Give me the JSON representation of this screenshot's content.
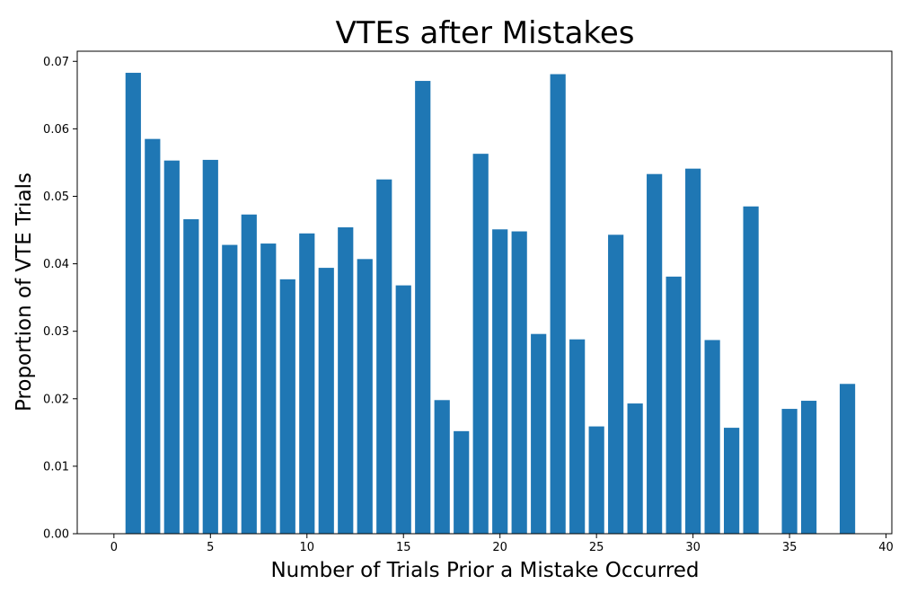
{
  "chart_data": {
    "type": "bar",
    "title": "VTEs after Mistakes",
    "xlabel": "Number of Trials Prior a Mistake Occurred",
    "ylabel": "Proportion of VTE Trials",
    "xlim": [
      -1.9,
      40.3
    ],
    "ylim": [
      0,
      0.0715
    ],
    "bar_width": 0.8,
    "bar_color": "#1f77b4",
    "grid": false,
    "x_ticks": [
      {
        "value": 0,
        "label": "0"
      },
      {
        "value": 5,
        "label": "5"
      },
      {
        "value": 10,
        "label": "10"
      },
      {
        "value": 15,
        "label": "15"
      },
      {
        "value": 20,
        "label": "20"
      },
      {
        "value": 25,
        "label": "25"
      },
      {
        "value": 30,
        "label": "30"
      },
      {
        "value": 35,
        "label": "35"
      },
      {
        "value": 40,
        "label": "40"
      }
    ],
    "y_ticks": [
      {
        "value": 0,
        "label": "0.00"
      },
      {
        "value": 0.01,
        "label": "0.01"
      },
      {
        "value": 0.02,
        "label": "0.02"
      },
      {
        "value": 0.03,
        "label": "0.03"
      },
      {
        "value": 0.04,
        "label": "0.04"
      },
      {
        "value": 0.05,
        "label": "0.05"
      },
      {
        "value": 0.06,
        "label": "0.06"
      },
      {
        "value": 0.07,
        "label": "0.07"
      }
    ],
    "x": [
      1,
      2,
      3,
      4,
      5,
      6,
      7,
      8,
      9,
      10,
      11,
      12,
      13,
      14,
      15,
      16,
      17,
      18,
      19,
      20,
      21,
      22,
      23,
      24,
      25,
      26,
      27,
      28,
      29,
      30,
      31,
      32,
      33,
      35,
      36,
      38
    ],
    "values": [
      0.0683,
      0.0585,
      0.0553,
      0.0466,
      0.0554,
      0.0428,
      0.0473,
      0.043,
      0.0377,
      0.0445,
      0.0394,
      0.0454,
      0.0407,
      0.0525,
      0.0368,
      0.0671,
      0.0198,
      0.0152,
      0.0563,
      0.0451,
      0.0448,
      0.0296,
      0.0681,
      0.0288,
      0.0159,
      0.0443,
      0.0193,
      0.0533,
      0.0381,
      0.0541,
      0.0287,
      0.0157,
      0.0485,
      0.0185,
      0.0197,
      0.0222
    ]
  }
}
